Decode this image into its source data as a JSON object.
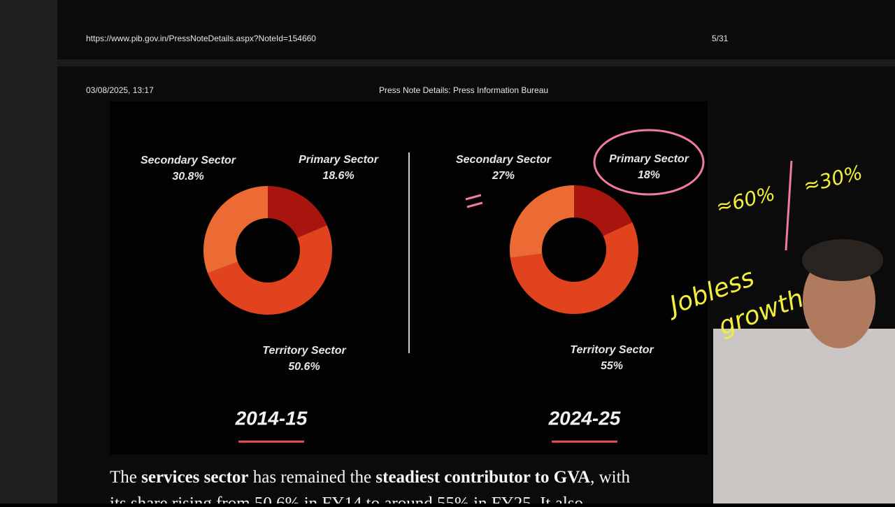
{
  "header": {
    "url": "https://www.pib.gov.in/PressNoteDetails.aspx?NoteId=154660",
    "page": "5/31",
    "datetime": "03/08/2025, 13:17",
    "doc_title": "Press Note Details: Press Information Bureau"
  },
  "chart_data": [
    {
      "type": "pie",
      "title": "2014-15",
      "categories": [
        "Primary Sector",
        "Territory Sector",
        "Secondary Sector"
      ],
      "values": [
        18.6,
        50.6,
        30.8
      ],
      "value_labels": [
        "18.6%",
        "50.6%",
        "30.8%"
      ],
      "colors": [
        "#a8150f",
        "#e2431f",
        "#ec6a34"
      ]
    },
    {
      "type": "pie",
      "title": "2024-25",
      "categories": [
        "Primary Sector",
        "Territory Sector",
        "Secondary Sector"
      ],
      "values": [
        18,
        55,
        27
      ],
      "value_labels": [
        "18%",
        "55%",
        "27%"
      ],
      "colors": [
        "#a8150f",
        "#e2431f",
        "#ec6a34"
      ]
    }
  ],
  "body": {
    "line1": [
      "The ",
      "services sector",
      " has remained the ",
      "steadiest contributor to GVA",
      ", with"
    ],
    "line2": "its share rising from 50.6% in FY14 to around 55% in FY25. It also"
  },
  "annotations": [
    "≈60%",
    "≈30%",
    "Jobless",
    "growth"
  ]
}
